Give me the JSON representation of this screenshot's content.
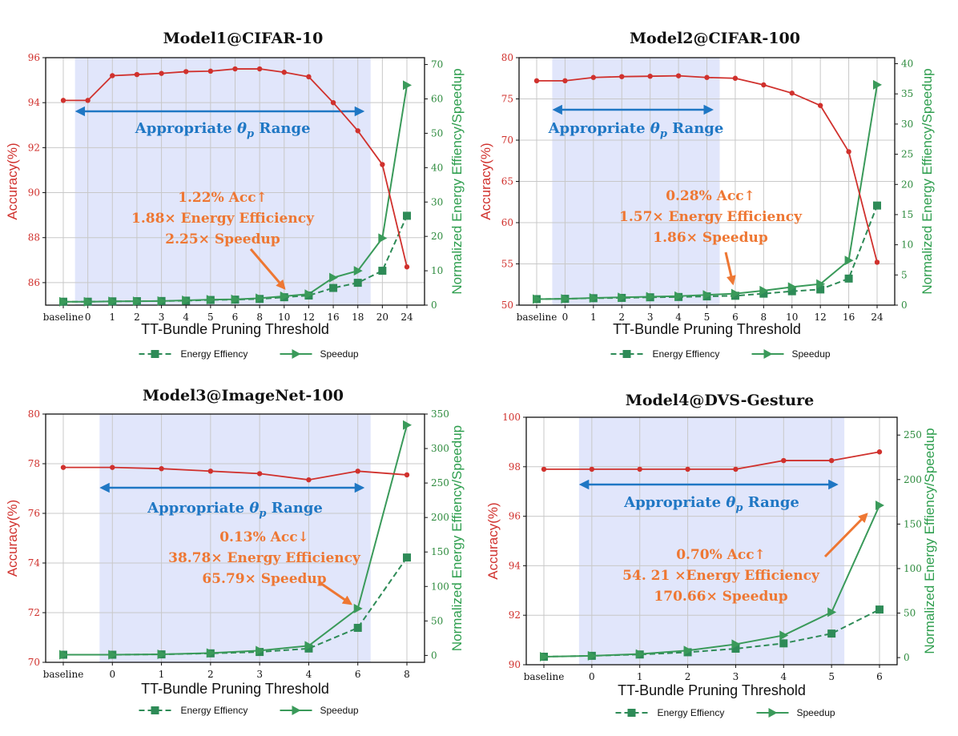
{
  "figure": {
    "x_axis_title": "TT-Bundle Pruning Threshold",
    "left_axis_title": "Accuracy(%)",
    "right_axis_title": "Normalized Energy Effiency/Speedup",
    "range_label": "Appropriate θp Range",
    "legend": {
      "energy": "Energy Effiency",
      "speedup": "Speedup"
    },
    "colors": {
      "accuracy": "#d0312d",
      "energy": "#2e8b57",
      "speedup": "#3a9a5a",
      "range": "#1f77c4",
      "annotation": "#ee7733",
      "band": "#e1e6fb"
    }
  },
  "chart_data": [
    {
      "type": "line",
      "title": "Model1@CIFAR-10",
      "categories": [
        "baseline",
        "0",
        "1",
        "2",
        "3",
        "4",
        "5",
        "6",
        "8",
        "10",
        "12",
        "16",
        "18",
        "20",
        "24"
      ],
      "left_ylim": [
        85,
        96
      ],
      "left_ticks": [
        86,
        88,
        90,
        92,
        94,
        96
      ],
      "right_ylim": [
        0,
        72
      ],
      "right_ticks": [
        0,
        10,
        20,
        30,
        40,
        50,
        60,
        70
      ],
      "series": [
        {
          "name": "Accuracy",
          "axis": "left",
          "values": [
            94.1,
            94.1,
            95.2,
            95.25,
            95.3,
            95.38,
            95.4,
            95.5,
            95.5,
            95.35,
            95.15,
            94.0,
            92.75,
            91.25,
            86.7
          ]
        },
        {
          "name": "Energy Effiency",
          "axis": "right",
          "values": [
            1,
            1,
            1.1,
            1.15,
            1.2,
            1.3,
            1.5,
            1.6,
            1.8,
            2.3,
            2.8,
            5,
            6.5,
            10,
            26
          ]
        },
        {
          "name": "Speedup",
          "axis": "right",
          "values": [
            1,
            1,
            1.1,
            1.15,
            1.2,
            1.4,
            1.6,
            1.7,
            2.0,
            2.6,
            3.2,
            8,
            10,
            19.5,
            64
          ]
        }
      ],
      "band": [
        1,
        12
      ],
      "range_arrow": [
        1,
        12
      ],
      "annotation_lines": [
        "1.22% Acc↑",
        "1.88× Energy Efficiency",
        "2.25× Speedup"
      ]
    },
    {
      "type": "line",
      "title": "Model2@CIFAR-100",
      "categories": [
        "baseline",
        "0",
        "1",
        "2",
        "3",
        "4",
        "5",
        "6",
        "8",
        "10",
        "12",
        "16",
        "24"
      ],
      "left_ylim": [
        50,
        80
      ],
      "left_ticks": [
        50,
        55,
        60,
        65,
        70,
        75,
        80
      ],
      "right_ylim": [
        0,
        41
      ],
      "right_ticks": [
        0,
        5,
        10,
        15,
        20,
        25,
        30,
        35,
        40
      ],
      "series": [
        {
          "name": "Accuracy",
          "axis": "left",
          "values": [
            77.2,
            77.2,
            77.6,
            77.7,
            77.75,
            77.8,
            77.6,
            77.5,
            76.7,
            75.7,
            74.2,
            68.6,
            55.2
          ]
        },
        {
          "name": "Energy Effiency",
          "axis": "right",
          "values": [
            1,
            1.05,
            1.15,
            1.2,
            1.3,
            1.35,
            1.45,
            1.55,
            1.9,
            2.3,
            2.6,
            4.4,
            16.5
          ]
        },
        {
          "name": "Speedup",
          "axis": "right",
          "values": [
            1,
            1.05,
            1.2,
            1.3,
            1.4,
            1.5,
            1.7,
            1.9,
            2.4,
            3.0,
            3.5,
            7.4,
            36.5
          ]
        }
      ],
      "band": [
        1,
        6
      ],
      "range_arrow": [
        1,
        6
      ],
      "annotation_lines": [
        "0.28% Acc↑",
        "1.57× Energy Efficiency",
        "1.86× Speedup"
      ]
    },
    {
      "type": "line",
      "title": "Model3@ImageNet-100",
      "categories": [
        "baseline",
        "0",
        "1",
        "2",
        "3",
        "4",
        "6",
        "8"
      ],
      "left_ylim": [
        70,
        80
      ],
      "left_ticks": [
        70,
        72,
        74,
        76,
        78,
        80
      ],
      "right_ylim": [
        -10,
        350
      ],
      "right_ticks": [
        0,
        50,
        100,
        150,
        200,
        250,
        300,
        350
      ],
      "series": [
        {
          "name": "Accuracy",
          "axis": "left",
          "values": [
            77.85,
            77.85,
            77.8,
            77.7,
            77.6,
            77.35,
            77.7,
            77.55
          ]
        },
        {
          "name": "Energy Effiency",
          "axis": "right",
          "values": [
            1,
            1,
            1.5,
            3,
            5,
            10,
            40,
            142
          ]
        },
        {
          "name": "Speedup",
          "axis": "right",
          "values": [
            1,
            1,
            1.6,
            3.5,
            7,
            14,
            68,
            334
          ]
        }
      ],
      "band": [
        1,
        6
      ],
      "range_arrow": [
        1,
        6
      ],
      "annotation_lines": [
        "0.13% Acc↓",
        "38.78× Energy Efficiency",
        "65.79× Speedup"
      ]
    },
    {
      "type": "line",
      "title": "Model4@DVS-Gesture",
      "categories": [
        "baseline",
        "0",
        "1",
        "2",
        "3",
        "4",
        "5",
        "6"
      ],
      "left_ylim": [
        90,
        100
      ],
      "left_ticks": [
        90,
        92,
        94,
        96,
        98,
        100
      ],
      "right_ylim": [
        -8,
        270
      ],
      "right_ticks": [
        0,
        50,
        100,
        150,
        200,
        250
      ],
      "series": [
        {
          "name": "Accuracy",
          "axis": "left",
          "values": [
            97.9,
            97.9,
            97.9,
            97.9,
            97.9,
            98.25,
            98.25,
            98.6
          ]
        },
        {
          "name": "Energy Effiency",
          "axis": "right",
          "values": [
            1,
            2,
            3.5,
            6,
            10,
            16,
            27,
            54
          ]
        },
        {
          "name": "Speedup",
          "axis": "right",
          "values": [
            1,
            2,
            4,
            8,
            15,
            25,
            51,
            171
          ]
        }
      ],
      "band": [
        1,
        6
      ],
      "range_arrow": [
        1,
        6
      ],
      "annotation_lines": [
        "0.70% Acc↑",
        "54. 21 ×Energy Efficiency",
        "170.66× Speedup"
      ]
    }
  ]
}
